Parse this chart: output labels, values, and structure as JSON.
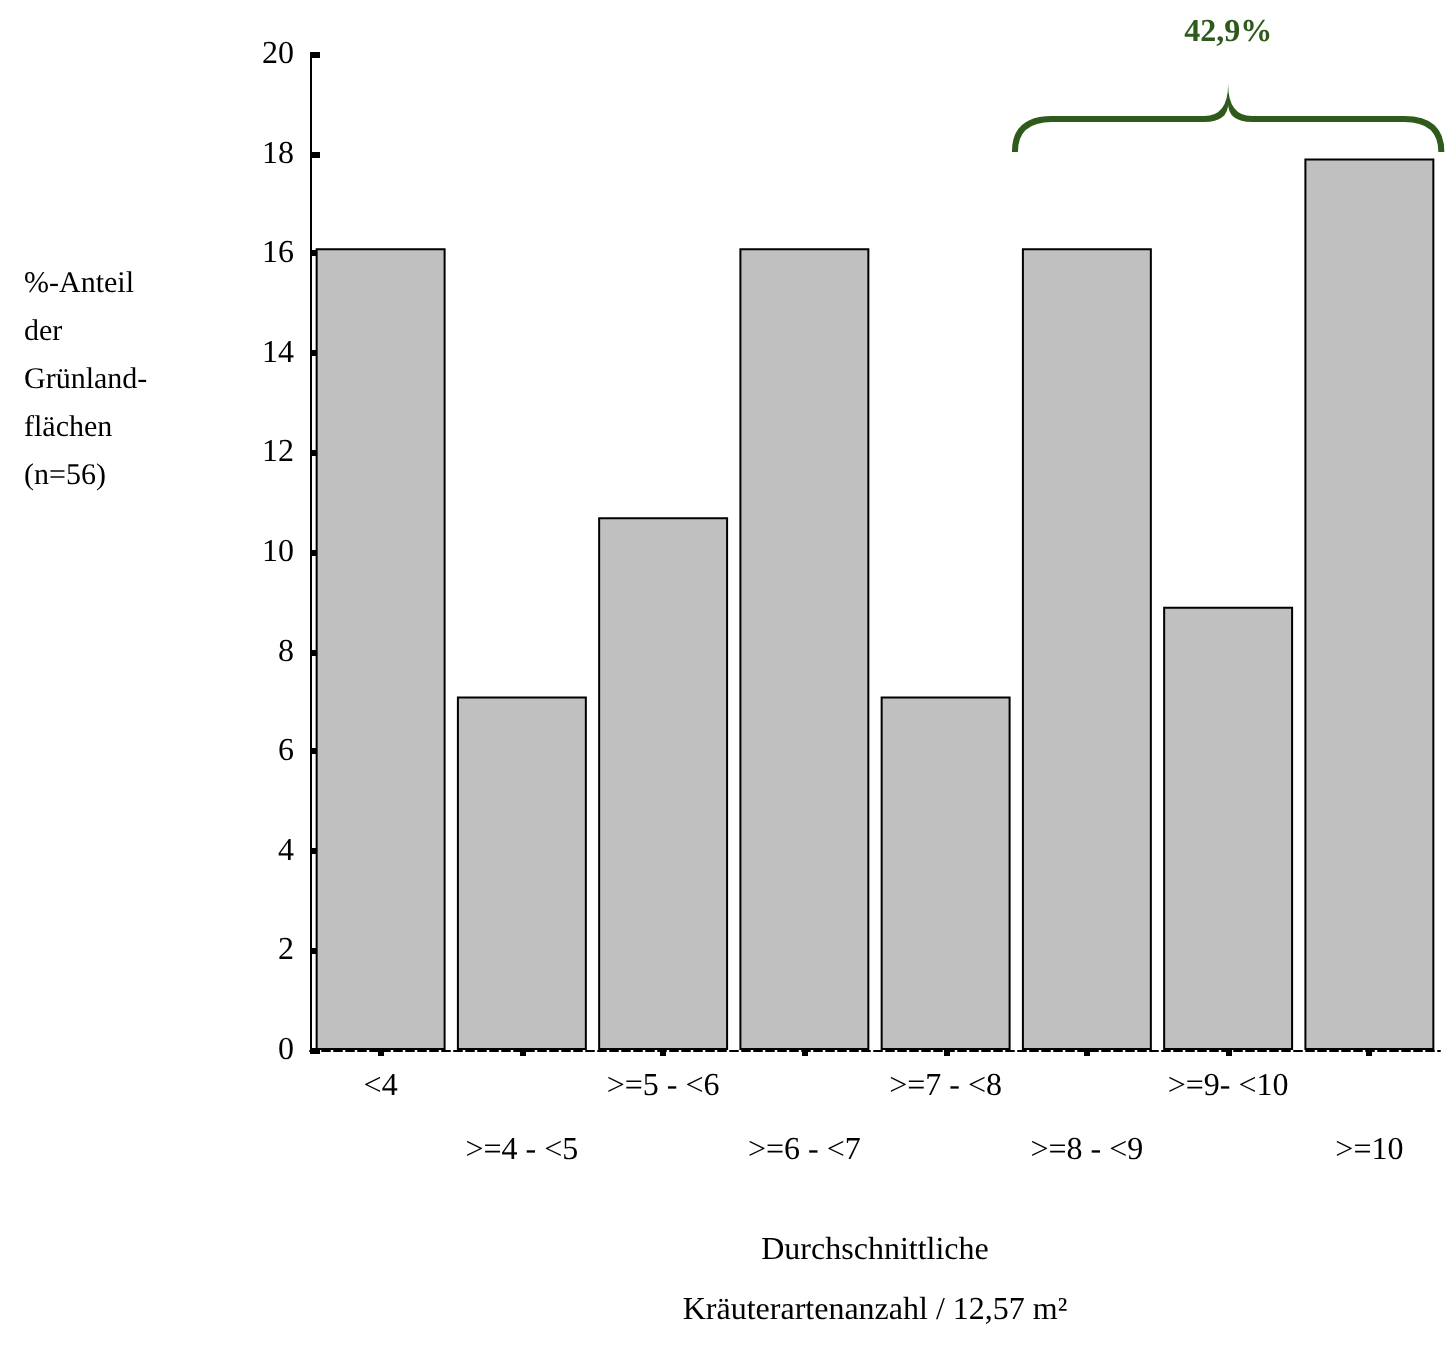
{
  "chart_data": {
    "type": "bar",
    "categories": [
      "<4",
      ">=4 - <5",
      ">=5 - <6",
      ">=6 - <7",
      ">=7 - <8",
      ">=8 - <9",
      ">=9- <10",
      ">=10"
    ],
    "values": [
      16.1,
      7.1,
      10.7,
      16.1,
      7.1,
      16.1,
      8.9,
      17.9
    ],
    "color": "#c0c0c0",
    "ylim": [
      0,
      20
    ],
    "yticks": [
      0,
      2,
      4,
      6,
      8,
      10,
      12,
      14,
      16,
      18,
      20
    ],
    "ylabel": "%-Anteil\nder\nGrünland-\nflächen\n(n=56)",
    "xlabel": "Durchschnittliche\nKräuterartenanzahl / 12,57 m²",
    "annotations": [
      "42,9%"
    ],
    "grid": false
  }
}
